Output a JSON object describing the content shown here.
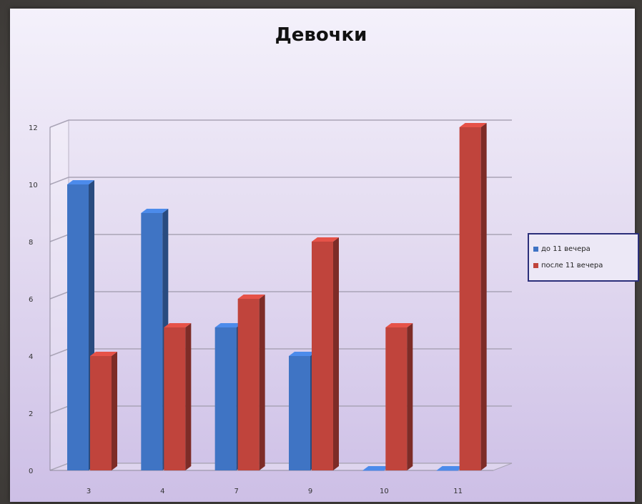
{
  "chart_data": {
    "type": "bar",
    "title": "Девочки",
    "xlabel": "",
    "ylabel": "",
    "categories": [
      "3",
      "4",
      "7",
      "9",
      "10",
      "11"
    ],
    "series": [
      {
        "name": "до 11 вечера",
        "color": "#3f74c4",
        "values": [
          10,
          9,
          5,
          4,
          0,
          0
        ]
      },
      {
        "name": "после 11 вечера",
        "color": "#c0443c",
        "values": [
          4,
          5,
          6,
          8,
          5,
          12
        ]
      }
    ],
    "ylim": [
      0,
      12
    ],
    "yticks": [
      "0",
      "2",
      "4",
      "6",
      "8",
      "10",
      "12"
    ],
    "grid": true,
    "legend": "right",
    "style": "3d-bar"
  }
}
